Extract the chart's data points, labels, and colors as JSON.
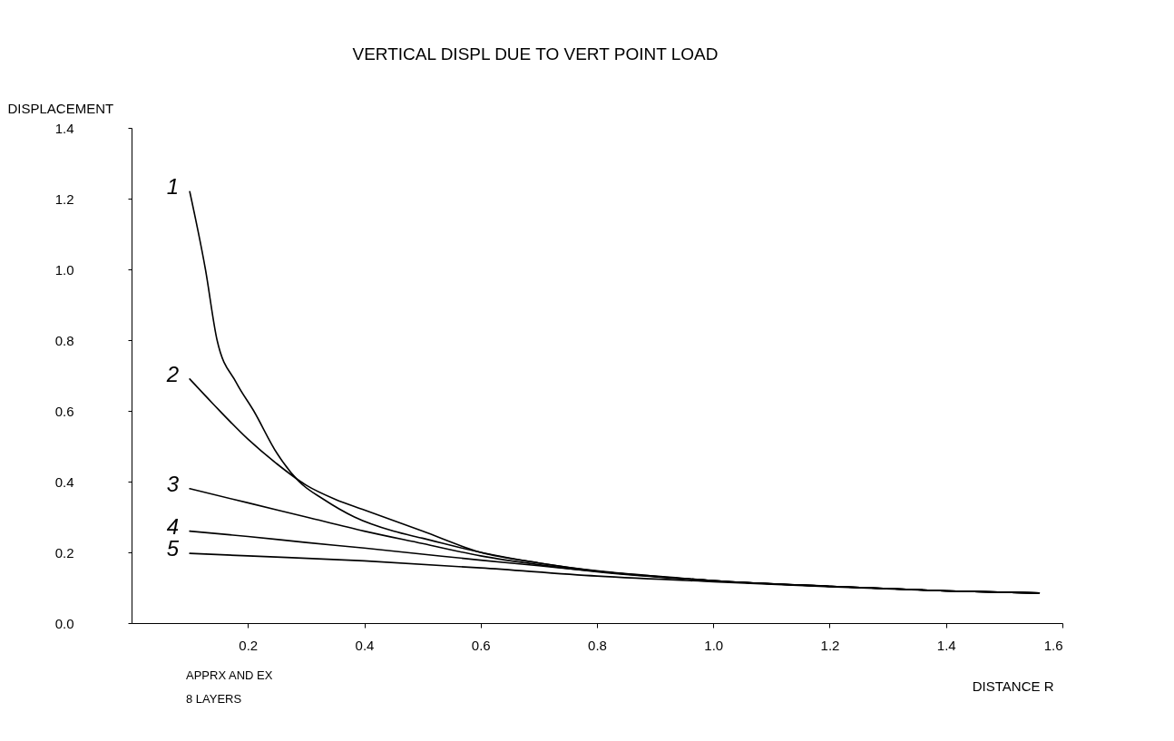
{
  "chart_data": {
    "type": "line",
    "title": "VERTICAL DISPL DUE TO VERT POINT LOAD",
    "xlabel": "DISTANCE R",
    "ylabel": "DISPLACEMENT",
    "xlim": [
      0,
      1.6
    ],
    "xticks": [
      0.2,
      0.4,
      0.6,
      0.8,
      {
        "value": 1,
        "label": "1.0"
      },
      1.2,
      1.4,
      1.6
    ],
    "ylim": [
      0,
      1.4
    ],
    "yticks": [
      {
        "value": 0,
        "label": "0.0"
      },
      0.2,
      0.4,
      0.6,
      0.8,
      {
        "value": 1,
        "label": "1.0"
      },
      1.2,
      1.4
    ],
    "grid": false,
    "legend": "left",
    "marker": "none",
    "line_style": "solid",
    "annotations": [
      "APPRX AND EX",
      "8 LAYERS"
    ],
    "series": [
      {
        "name": "1",
        "color": "#000000",
        "x": [
          0.1,
          0.127,
          0.147,
          0.18,
          0.21,
          0.25,
          0.288,
          0.33,
          0.383,
          0.45,
          0.5,
          0.6,
          0.7,
          0.8,
          0.9,
          1.0,
          1.2,
          1.4,
          1.56
        ],
        "values": [
          1.22,
          1.0,
          0.8,
          0.68,
          0.6,
          0.48,
          0.4,
          0.35,
          0.3,
          0.26,
          0.24,
          0.2,
          0.17,
          0.148,
          0.133,
          0.12,
          0.104,
          0.091,
          0.085
        ]
      },
      {
        "name": "2",
        "color": "#000000",
        "x": [
          0.1,
          0.14,
          0.2,
          0.25,
          0.3,
          0.35,
          0.4,
          0.5,
          0.6,
          0.7,
          0.8,
          1.0,
          1.2,
          1.4,
          1.56
        ],
        "values": [
          0.69,
          0.62,
          0.52,
          0.45,
          0.39,
          0.35,
          0.32,
          0.26,
          0.2,
          0.17,
          0.147,
          0.12,
          0.104,
          0.091,
          0.085
        ]
      },
      {
        "name": "3",
        "color": "#000000",
        "x": [
          0.1,
          0.2,
          0.3,
          0.4,
          0.5,
          0.6,
          0.7,
          0.8,
          1.0,
          1.2,
          1.4,
          1.56
        ],
        "values": [
          0.38,
          0.34,
          0.3,
          0.26,
          0.225,
          0.19,
          0.165,
          0.145,
          0.12,
          0.104,
          0.091,
          0.085
        ]
      },
      {
        "name": "4",
        "color": "#000000",
        "x": [
          0.1,
          0.2,
          0.3,
          0.4,
          0.5,
          0.6,
          0.7,
          0.8,
          1.0,
          1.2,
          1.4,
          1.56
        ],
        "values": [
          0.26,
          0.245,
          0.228,
          0.212,
          0.195,
          0.178,
          0.162,
          0.146,
          0.12,
          0.104,
          0.091,
          0.085
        ]
      },
      {
        "name": "5",
        "color": "#000000",
        "x": [
          0.1,
          0.2,
          0.4,
          0.6,
          0.8,
          1.0,
          1.2,
          1.4,
          1.56
        ],
        "values": [
          0.197,
          0.19,
          0.176,
          0.156,
          0.133,
          0.117,
          0.103,
          0.091,
          0.085
        ]
      }
    ]
  }
}
